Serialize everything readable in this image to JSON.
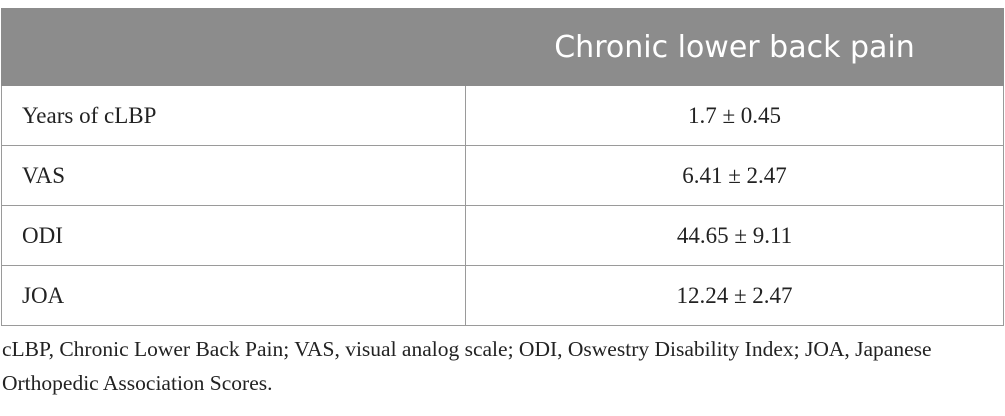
{
  "table": {
    "header": {
      "title": "Chronic lower back pain"
    },
    "rows": [
      [
        "Years of cLBP",
        "1.7 ± 0.45"
      ],
      [
        "VAS",
        "6.41 ± 2.47"
      ],
      [
        "ODI",
        "44.65 ± 9.11"
      ],
      [
        "JOA",
        "12.24 ± 2.47"
      ]
    ]
  },
  "footnote": "cLBP, Chronic Lower Back Pain; VAS, visual analog scale; ODI, Oswestry Disability Index; JOA, Japanese Orthopedic Association Scores."
}
